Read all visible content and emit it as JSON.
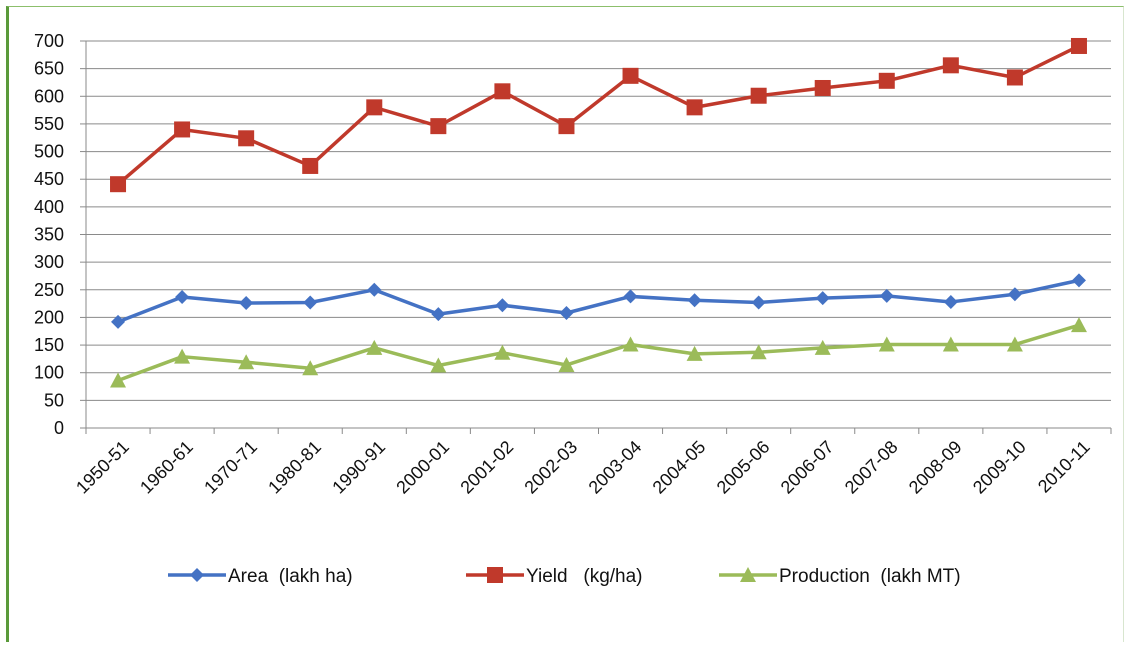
{
  "chart_data": {
    "type": "line",
    "categories": [
      "1950-51",
      "1960-61",
      "1970-71",
      "1980-81",
      "1990-91",
      "2000-01",
      "2001-02",
      "2002-03",
      "2003-04",
      "2004-05",
      "2005-06",
      "2006-07",
      "2007-08",
      "2008-09",
      "2009-10",
      "2010-11"
    ],
    "y_ticks": [
      0,
      50,
      100,
      150,
      200,
      250,
      300,
      350,
      400,
      450,
      500,
      550,
      600,
      650,
      700
    ],
    "ylim": [
      0,
      700
    ],
    "grid": "horizontal",
    "legend_position": "bottom",
    "series": [
      {
        "name": "Area  (lakh ha)",
        "color": "#4472c4",
        "marker": "diamond",
        "values": [
          192,
          237,
          226,
          227,
          250,
          206,
          222,
          208,
          238,
          231,
          227,
          235,
          239,
          228,
          242,
          267
        ]
      },
      {
        "name": "Yield   (kg/ha)",
        "color": "#c0392b",
        "marker": "square",
        "values": [
          441,
          540,
          524,
          474,
          580,
          546,
          609,
          546,
          637,
          580,
          601,
          615,
          628,
          656,
          634,
          691
        ]
      },
      {
        "name": "Production  (lakh MT)",
        "color": "#9bbb59",
        "marker": "triangle",
        "values": [
          86,
          129,
          119,
          108,
          145,
          113,
          136,
          114,
          151,
          134,
          137,
          145,
          151,
          151,
          151,
          186
        ]
      }
    ]
  }
}
